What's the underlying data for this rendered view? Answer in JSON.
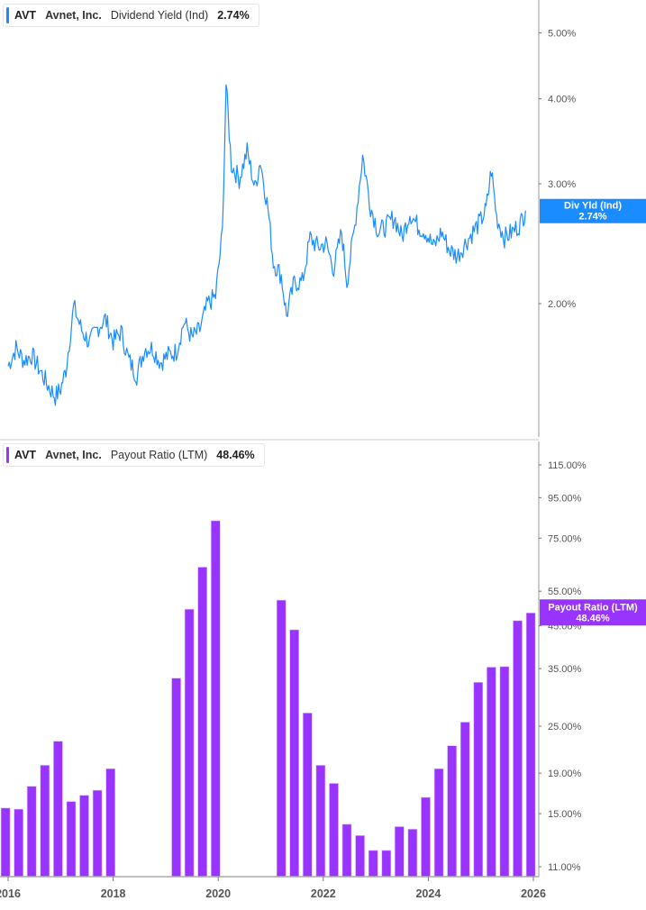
{
  "top_legend": {
    "ticker": "AVT",
    "company": "Avnet, Inc.",
    "metric": "Dividend Yield (Ind)",
    "value": "2.74%",
    "color": "#1a8cff"
  },
  "top_flag": {
    "label": "Div Yld (Ind)",
    "value": "2.74%",
    "color": "#1a8cff"
  },
  "bottom_legend": {
    "ticker": "AVT",
    "company": "Avnet, Inc.",
    "metric": "Payout Ratio (LTM)",
    "value": "48.46%",
    "color": "#9933ff"
  },
  "bottom_flag": {
    "label": "Payout Ratio (LTM)",
    "value": "48.46%",
    "color": "#9933ff"
  },
  "chart_data": [
    {
      "type": "line",
      "title": "AVT Avnet, Inc. Dividend Yield (Ind)",
      "series_name": "Dividend Yield (Ind)",
      "color": "#1a8cff",
      "y_scale": "log",
      "y_ticks": [
        {
          "label": "5.00%",
          "value": 5.0
        },
        {
          "label": "4.00%",
          "value": 4.0
        },
        {
          "label": "3.00%",
          "value": 3.0
        },
        {
          "label": "2.00%",
          "value": 2.0
        }
      ],
      "ylim": [
        1.4,
        5.5
      ],
      "last_value": 2.74,
      "x": [
        2016.0,
        2016.15,
        2016.3,
        2016.45,
        2016.6,
        2016.75,
        2016.9,
        2017.0,
        2017.1,
        2017.25,
        2017.4,
        2017.55,
        2017.7,
        2017.85,
        2018.0,
        2018.15,
        2018.3,
        2018.45,
        2018.6,
        2018.75,
        2018.9,
        2019.05,
        2019.2,
        2019.35,
        2019.5,
        2019.65,
        2019.8,
        2019.95,
        2020.08,
        2020.15,
        2020.25,
        2020.4,
        2020.55,
        2020.7,
        2020.8,
        2020.95,
        2021.05,
        2021.2,
        2021.3,
        2021.45,
        2021.6,
        2021.75,
        2021.9,
        2022.05,
        2022.2,
        2022.35,
        2022.45,
        2022.6,
        2022.75,
        2022.9,
        2023.05,
        2023.2,
        2023.35,
        2023.5,
        2023.65,
        2023.8,
        2023.95,
        2024.1,
        2024.25,
        2024.4,
        2024.55,
        2024.7,
        2024.85,
        2025.0,
        2025.1,
        2025.2,
        2025.3,
        2025.45,
        2025.6,
        2025.75,
        2025.85
      ],
      "values": [
        1.62,
        1.72,
        1.65,
        1.68,
        1.6,
        1.52,
        1.46,
        1.5,
        1.6,
        1.98,
        1.83,
        1.75,
        1.84,
        1.9,
        1.76,
        1.82,
        1.65,
        1.57,
        1.72,
        1.72,
        1.64,
        1.68,
        1.7,
        1.88,
        1.78,
        1.83,
        2.0,
        2.05,
        2.55,
        4.2,
        3.2,
        3.05,
        3.35,
        2.95,
        3.25,
        2.75,
        2.3,
        2.2,
        1.92,
        2.15,
        2.15,
        2.5,
        2.42,
        2.45,
        2.25,
        2.55,
        2.15,
        2.6,
        3.3,
        2.78,
        2.55,
        2.6,
        2.68,
        2.5,
        2.72,
        2.6,
        2.55,
        2.42,
        2.55,
        2.4,
        2.35,
        2.45,
        2.55,
        2.65,
        2.75,
        3.15,
        2.68,
        2.5,
        2.55,
        2.62,
        2.74
      ]
    },
    {
      "type": "bar",
      "title": "AVT Avnet, Inc. Payout Ratio (LTM)",
      "series_name": "Payout Ratio (LTM)",
      "color": "#9933ff",
      "y_scale": "log",
      "y_ticks": [
        {
          "label": "115.00%",
          "value": 115
        },
        {
          "label": "95.00%",
          "value": 95
        },
        {
          "label": "75.00%",
          "value": 75
        },
        {
          "label": "55.00%",
          "value": 55
        },
        {
          "label": "45.00%",
          "value": 45
        },
        {
          "label": "35.00%",
          "value": 35
        },
        {
          "label": "25.00%",
          "value": 25
        },
        {
          "label": "19.00%",
          "value": 19
        },
        {
          "label": "15.00%",
          "value": 15
        },
        {
          "label": "11.00%",
          "value": 11
        }
      ],
      "ylim": [
        10.4,
        125
      ],
      "last_value": 48.46,
      "categories": [
        "2016 Q1",
        "2016 Q2",
        "2016 Q3",
        "2016 Q4",
        "2017 Q1",
        "2017 Q2",
        "2017 Q3",
        "2017 Q4",
        "2018 Q1",
        "2019 Q2",
        "2019 Q3",
        "2019 Q4",
        "2020 Q1",
        "2021 Q2",
        "2021 Q3",
        "2021 Q4",
        "2022 Q1",
        "2022 Q2",
        "2022 Q3",
        "2022 Q4",
        "2023 Q1",
        "2023 Q2",
        "2023 Q3",
        "2023 Q4",
        "2024 Q1",
        "2024 Q2",
        "2024 Q3",
        "2024 Q4",
        "2025 Q1",
        "2025 Q2",
        "2025 Q3",
        "2025 Q4",
        "2026 Q1"
      ],
      "x": [
        2015.95,
        2016.2,
        2016.45,
        2016.7,
        2016.95,
        2017.2,
        2017.45,
        2017.7,
        2017.95,
        2019.2,
        2019.45,
        2019.7,
        2019.95,
        2021.2,
        2021.45,
        2021.7,
        2021.95,
        2022.2,
        2022.45,
        2022.7,
        2022.95,
        2023.2,
        2023.45,
        2023.7,
        2023.95,
        2024.2,
        2024.45,
        2024.7,
        2024.95,
        2025.2,
        2025.45,
        2025.7,
        2025.95
      ],
      "values": [
        15.5,
        15.4,
        17.6,
        19.9,
        22.9,
        16.1,
        16.7,
        17.2,
        19.5,
        33.1,
        49.5,
        63.3,
        83.0,
        52.2,
        43.9,
        27.0,
        19.9,
        17.9,
        14.1,
        13.2,
        12.1,
        12.1,
        13.9,
        13.7,
        16.5,
        19.5,
        22.3,
        25.6,
        32.3,
        35.3,
        35.4,
        46.3,
        48.46
      ]
    }
  ],
  "x_axis": {
    "ticks": [
      {
        "label": "2016",
        "value": 2016
      },
      {
        "label": "2018",
        "value": 2018
      },
      {
        "label": "2020",
        "value": 2020
      },
      {
        "label": "2022",
        "value": 2022
      },
      {
        "label": "2024",
        "value": 2024
      },
      {
        "label": "2026",
        "value": 2026
      }
    ]
  }
}
